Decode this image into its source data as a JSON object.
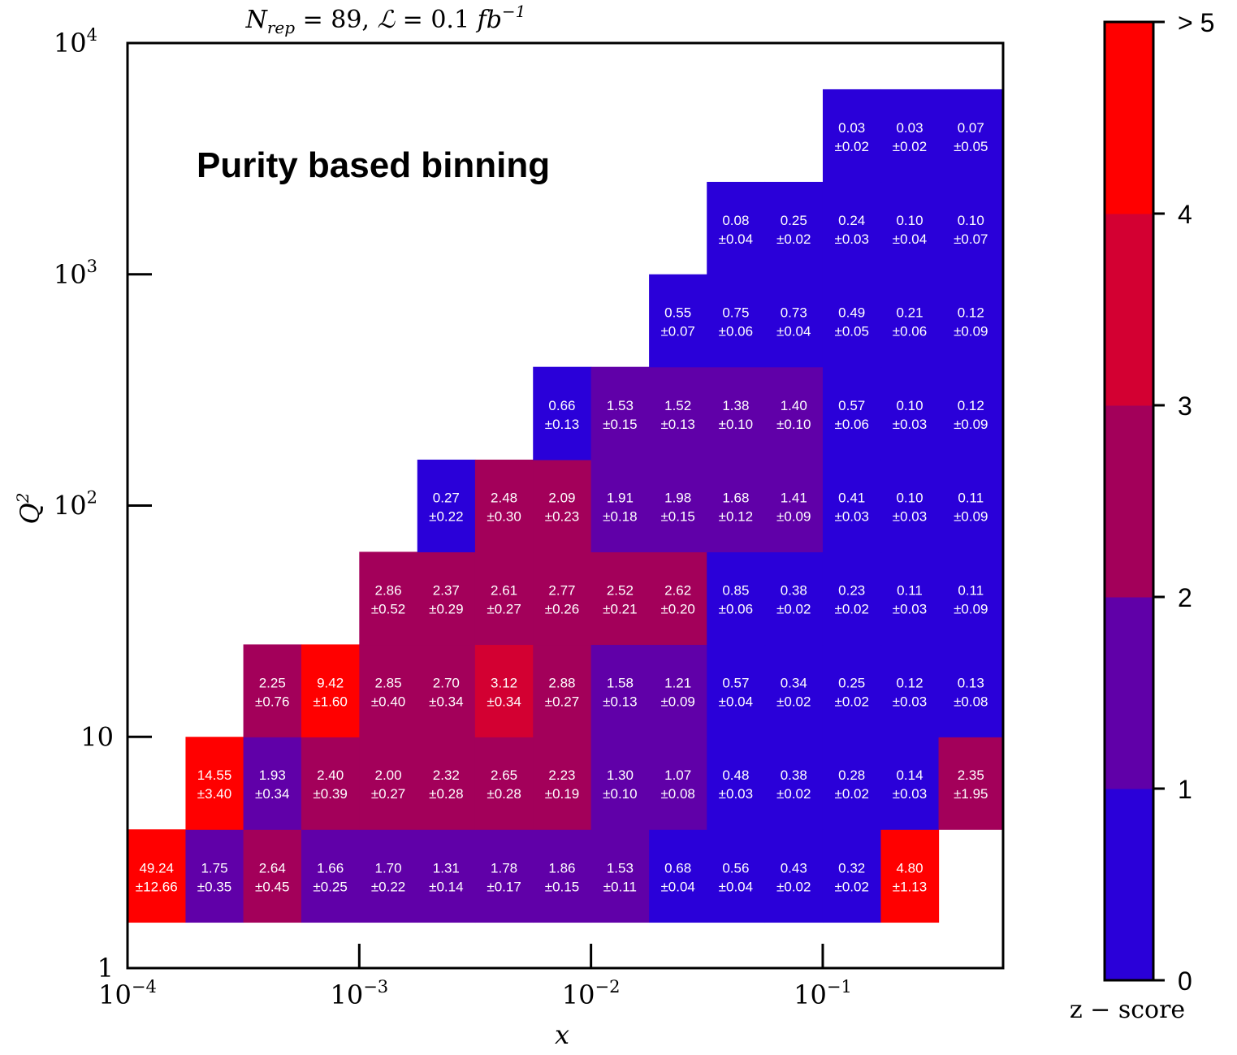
{
  "chart_data": {
    "type": "heatmap",
    "title": "N_rep = 89, ℒ = 0.1 fb⁻¹",
    "title_parts": {
      "n": "N",
      "n_sub": "rep",
      "eq1": " = 89, ",
      "lum": "ℒ",
      "eq2": " = 0.1 ",
      "unit": "fb",
      "unit_sup": "−1"
    },
    "annotation": "Purity based binning",
    "xlabel": "x",
    "ylabel": "Q",
    "ylabel_sup": "2",
    "x_scale": "log",
    "y_scale": "log",
    "xlim": [
      0.0001,
      0.6
    ],
    "ylim": [
      1,
      10000
    ],
    "x_ticks": [
      {
        "value": 0.0001,
        "base": "10",
        "exp": "−4"
      },
      {
        "value": 0.001,
        "base": "10",
        "exp": "−3"
      },
      {
        "value": 0.01,
        "base": "10",
        "exp": "−2"
      },
      {
        "value": 0.1,
        "base": "10",
        "exp": "−1"
      }
    ],
    "y_ticks": [
      {
        "value": 1,
        "base": "1",
        "exp": ""
      },
      {
        "value": 10,
        "base": "10",
        "exp": ""
      },
      {
        "value": 100,
        "base": "10",
        "exp": "2"
      },
      {
        "value": 1000,
        "base": "10",
        "exp": "3"
      },
      {
        "value": 10000,
        "base": "10",
        "exp": "4"
      }
    ],
    "colorbar": {
      "label": "z − score",
      "bounds": [
        0,
        1,
        2,
        3,
        4,
        5
      ],
      "tick_labels": [
        "0",
        "1",
        "2",
        "3",
        "4",
        "> 5"
      ],
      "colors": [
        "#2a00d9",
        "#6000a8",
        "#a3005a",
        "#d30032",
        "#ff0000"
      ]
    },
    "x_edges": [
      0.0001,
      0.000178,
      0.000316,
      0.000562,
      0.001,
      0.00178,
      0.00316,
      0.00562,
      0.01,
      0.0178,
      0.0316,
      0.0562,
      0.1,
      0.178,
      0.316,
      0.6
    ],
    "y_edges": [
      1.58,
      3.98,
      10,
      25.1,
      63.1,
      158,
      398,
      1000,
      2510,
      6310
    ],
    "rows": [
      {
        "y_bin": 0,
        "cells": [
          {
            "col": 0,
            "value": "49.24",
            "err": "12.66"
          },
          {
            "col": 1,
            "value": "1.75",
            "err": "0.35"
          },
          {
            "col": 2,
            "value": "2.64",
            "err": "0.45"
          },
          {
            "col": 3,
            "value": "1.66",
            "err": "0.25"
          },
          {
            "col": 4,
            "value": "1.70",
            "err": "0.22"
          },
          {
            "col": 5,
            "value": "1.31",
            "err": "0.14"
          },
          {
            "col": 6,
            "value": "1.78",
            "err": "0.17"
          },
          {
            "col": 7,
            "value": "1.86",
            "err": "0.15"
          },
          {
            "col": 8,
            "value": "1.53",
            "err": "0.11"
          },
          {
            "col": 9,
            "value": "0.68",
            "err": "0.04"
          },
          {
            "col": 10,
            "value": "0.56",
            "err": "0.04"
          },
          {
            "col": 11,
            "value": "0.43",
            "err": "0.02"
          },
          {
            "col": 12,
            "value": "0.32",
            "err": "0.02"
          },
          {
            "col": 13,
            "value": "4.80",
            "err": "1.13"
          }
        ]
      },
      {
        "y_bin": 1,
        "cells": [
          {
            "col": 1,
            "value": "14.55",
            "err": "3.40"
          },
          {
            "col": 2,
            "value": "1.93",
            "err": "0.34"
          },
          {
            "col": 3,
            "value": "2.40",
            "err": "0.39"
          },
          {
            "col": 4,
            "value": "2.00",
            "err": "0.27"
          },
          {
            "col": 5,
            "value": "2.32",
            "err": "0.28"
          },
          {
            "col": 6,
            "value": "2.65",
            "err": "0.28"
          },
          {
            "col": 7,
            "value": "2.23",
            "err": "0.19"
          },
          {
            "col": 8,
            "value": "1.30",
            "err": "0.10"
          },
          {
            "col": 9,
            "value": "1.07",
            "err": "0.08"
          },
          {
            "col": 10,
            "value": "0.48",
            "err": "0.03"
          },
          {
            "col": 11,
            "value": "0.38",
            "err": "0.02"
          },
          {
            "col": 12,
            "value": "0.28",
            "err": "0.02"
          },
          {
            "col": 13,
            "value": "0.14",
            "err": "0.03"
          },
          {
            "col": 14,
            "value": "2.35",
            "err": "1.95"
          }
        ]
      },
      {
        "y_bin": 2,
        "cells": [
          {
            "col": 2,
            "value": "2.25",
            "err": "0.76"
          },
          {
            "col": 3,
            "value": "9.42",
            "err": "1.60"
          },
          {
            "col": 4,
            "value": "2.85",
            "err": "0.40"
          },
          {
            "col": 5,
            "value": "2.70",
            "err": "0.34"
          },
          {
            "col": 6,
            "value": "3.12",
            "err": "0.34"
          },
          {
            "col": 7,
            "value": "2.88",
            "err": "0.27"
          },
          {
            "col": 8,
            "value": "1.58",
            "err": "0.13"
          },
          {
            "col": 9,
            "value": "1.21",
            "err": "0.09"
          },
          {
            "col": 10,
            "value": "0.57",
            "err": "0.04"
          },
          {
            "col": 11,
            "value": "0.34",
            "err": "0.02"
          },
          {
            "col": 12,
            "value": "0.25",
            "err": "0.02"
          },
          {
            "col": 13,
            "value": "0.12",
            "err": "0.03"
          },
          {
            "col": 14,
            "value": "0.13",
            "err": "0.08"
          }
        ]
      },
      {
        "y_bin": 3,
        "cells": [
          {
            "col": 4,
            "value": "2.86",
            "err": "0.52"
          },
          {
            "col": 5,
            "value": "2.37",
            "err": "0.29"
          },
          {
            "col": 6,
            "value": "2.61",
            "err": "0.27"
          },
          {
            "col": 7,
            "value": "2.77",
            "err": "0.26"
          },
          {
            "col": 8,
            "value": "2.52",
            "err": "0.21"
          },
          {
            "col": 9,
            "value": "2.62",
            "err": "0.20"
          },
          {
            "col": 10,
            "value": "0.85",
            "err": "0.06"
          },
          {
            "col": 11,
            "value": "0.38",
            "err": "0.02"
          },
          {
            "col": 12,
            "value": "0.23",
            "err": "0.02"
          },
          {
            "col": 13,
            "value": "0.11",
            "err": "0.03"
          },
          {
            "col": 14,
            "value": "0.11",
            "err": "0.09"
          }
        ]
      },
      {
        "y_bin": 4,
        "cells": [
          {
            "col": 5,
            "value": "0.27",
            "err": "0.22"
          },
          {
            "col": 6,
            "value": "2.48",
            "err": "0.30"
          },
          {
            "col": 7,
            "value": "2.09",
            "err": "0.23"
          },
          {
            "col": 8,
            "value": "1.91",
            "err": "0.18"
          },
          {
            "col": 9,
            "value": "1.98",
            "err": "0.15"
          },
          {
            "col": 10,
            "value": "1.68",
            "err": "0.12"
          },
          {
            "col": 11,
            "value": "1.41",
            "err": "0.09"
          },
          {
            "col": 12,
            "value": "0.41",
            "err": "0.03"
          },
          {
            "col": 13,
            "value": "0.10",
            "err": "0.03"
          },
          {
            "col": 14,
            "value": "0.11",
            "err": "0.09"
          }
        ]
      },
      {
        "y_bin": 5,
        "cells": [
          {
            "col": 7,
            "value": "0.66",
            "err": "0.13"
          },
          {
            "col": 8,
            "value": "1.53",
            "err": "0.15"
          },
          {
            "col": 9,
            "value": "1.52",
            "err": "0.13"
          },
          {
            "col": 10,
            "value": "1.38",
            "err": "0.10"
          },
          {
            "col": 11,
            "value": "1.40",
            "err": "0.10"
          },
          {
            "col": 12,
            "value": "0.57",
            "err": "0.06"
          },
          {
            "col": 13,
            "value": "0.10",
            "err": "0.03"
          },
          {
            "col": 14,
            "value": "0.12",
            "err": "0.09"
          }
        ]
      },
      {
        "y_bin": 6,
        "cells": [
          {
            "col": 9,
            "value": "0.55",
            "err": "0.07"
          },
          {
            "col": 10,
            "value": "0.75",
            "err": "0.06"
          },
          {
            "col": 11,
            "value": "0.73",
            "err": "0.04"
          },
          {
            "col": 12,
            "value": "0.49",
            "err": "0.05"
          },
          {
            "col": 13,
            "value": "0.21",
            "err": "0.06"
          },
          {
            "col": 14,
            "value": "0.12",
            "err": "0.09"
          }
        ]
      },
      {
        "y_bin": 7,
        "cells": [
          {
            "col": 10,
            "value": "0.08",
            "err": "0.04"
          },
          {
            "col": 11,
            "value": "0.25",
            "err": "0.02"
          },
          {
            "col": 12,
            "value": "0.24",
            "err": "0.03"
          },
          {
            "col": 13,
            "value": "0.10",
            "err": "0.04"
          },
          {
            "col": 14,
            "value": "0.10",
            "err": "0.07"
          }
        ]
      },
      {
        "y_bin": 8,
        "cells": [
          {
            "col": 12,
            "value": "0.03",
            "err": "0.02"
          },
          {
            "col": 13,
            "value": "0.03",
            "err": "0.02"
          },
          {
            "col": 14,
            "value": "0.07",
            "err": "0.05"
          }
        ]
      }
    ]
  }
}
